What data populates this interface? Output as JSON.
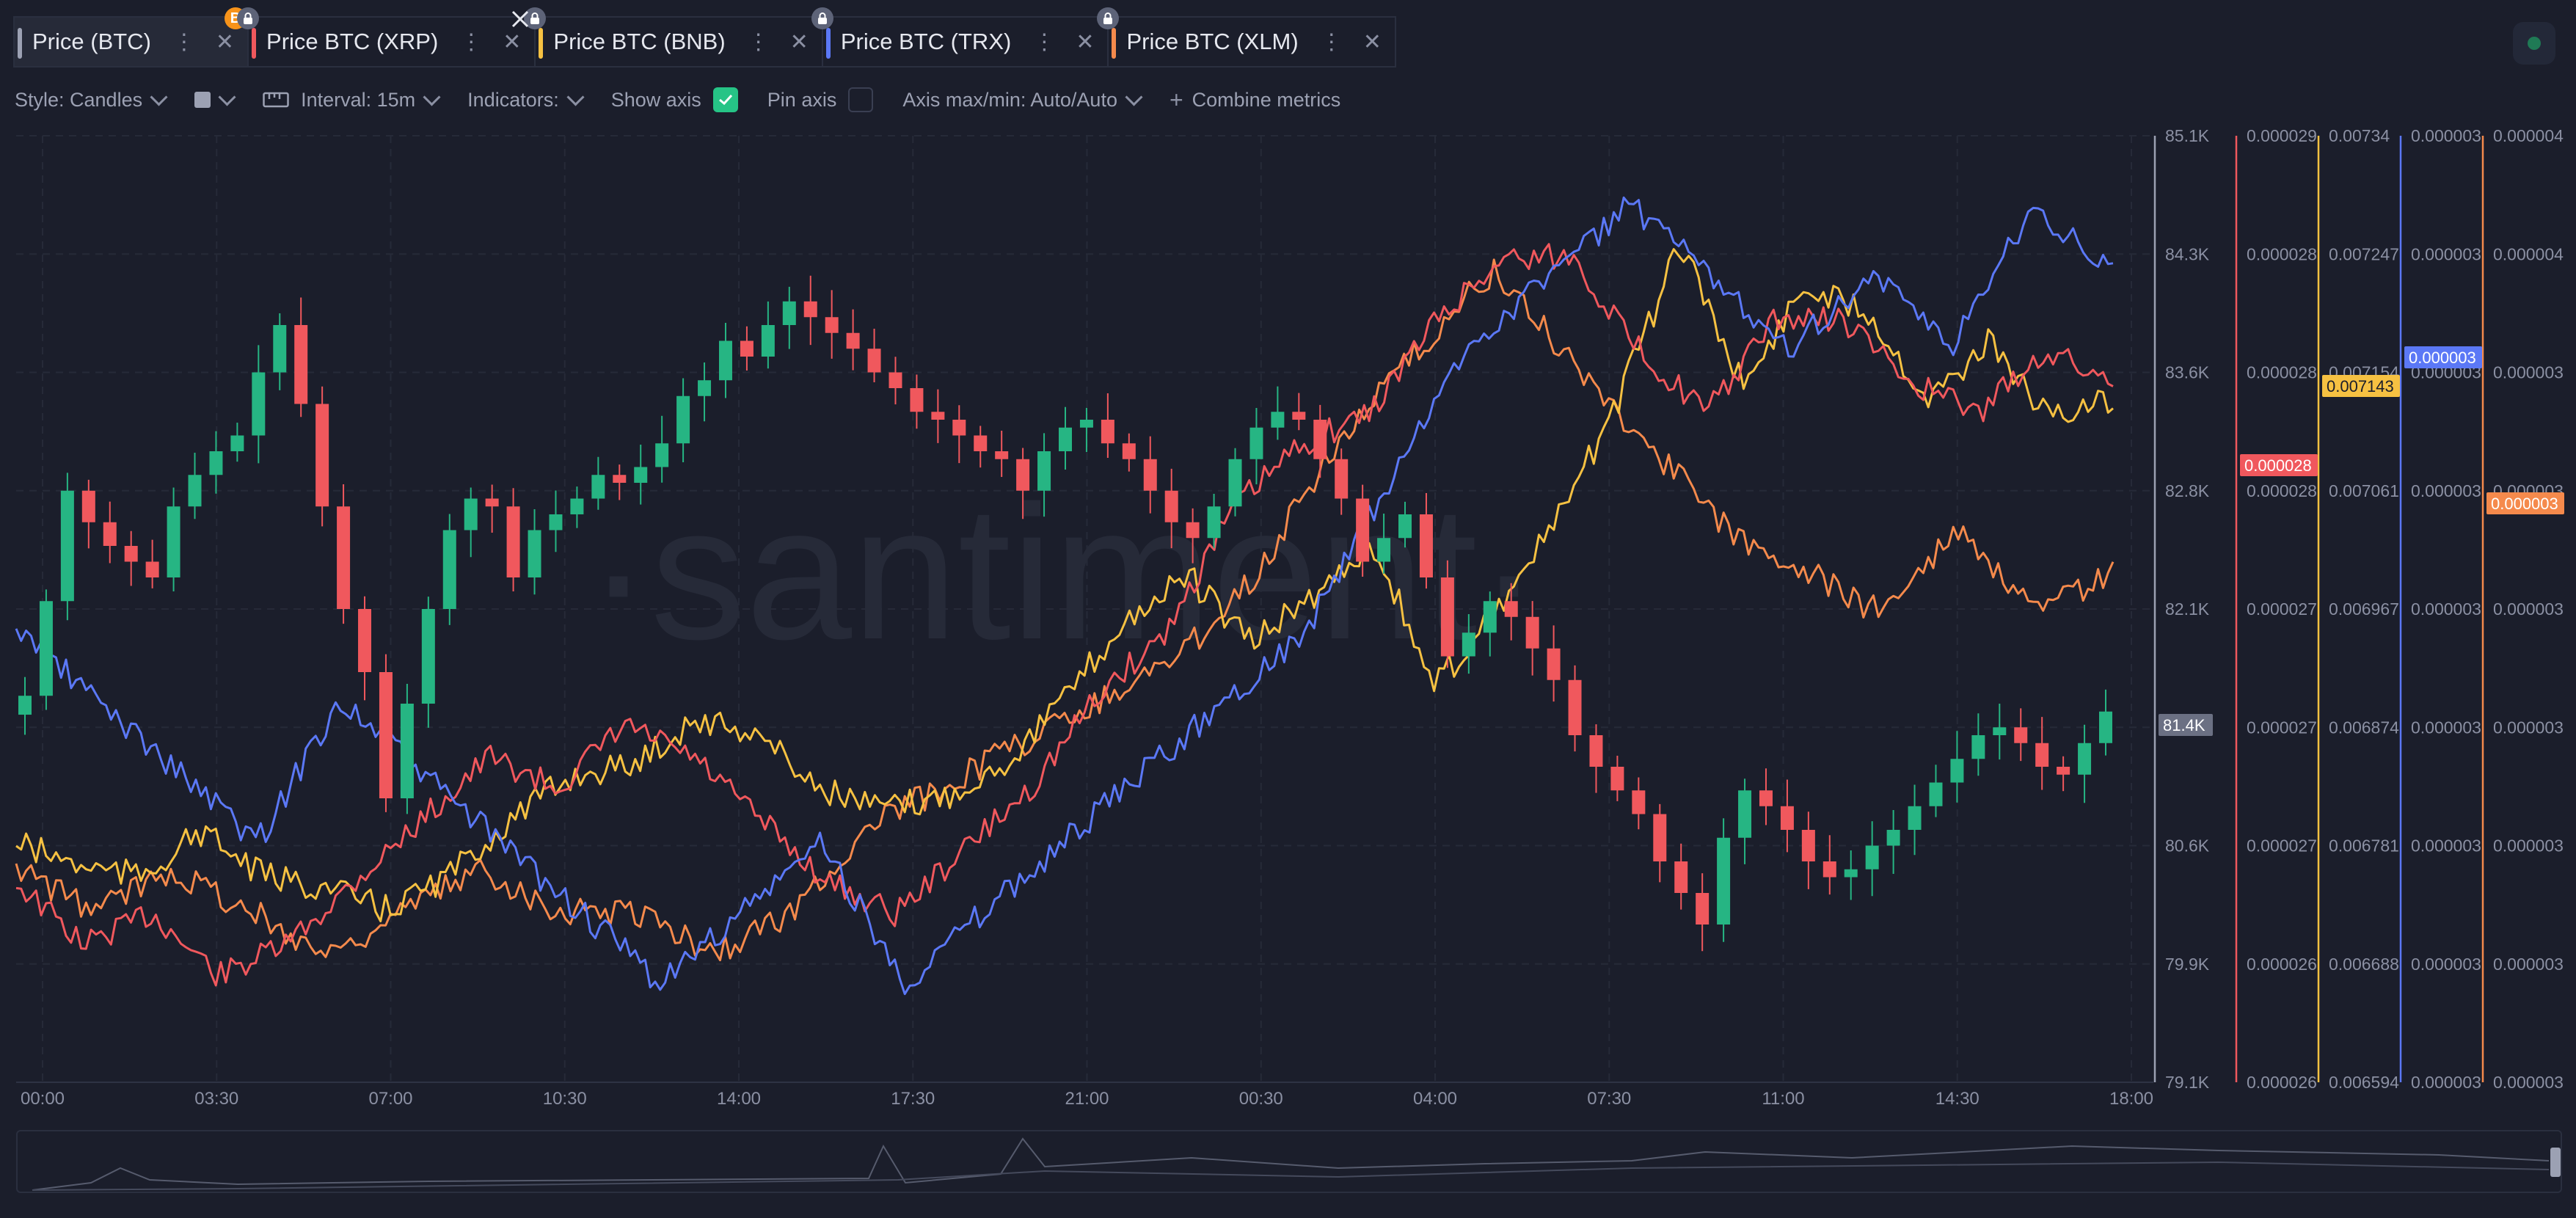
{
  "tabs": [
    {
      "label": "Price (BTC)",
      "color": "#9ca1b3",
      "badge": "B",
      "active": true
    },
    {
      "label": "Price BTC (XRP)",
      "color": "#f0585d",
      "locked": true
    },
    {
      "label": "Price BTC (BNB)",
      "color": "#f6c142",
      "locked": true
    },
    {
      "label": "Price BTC (TRX)",
      "color": "#5b78f6",
      "locked": true
    },
    {
      "label": "Price BTC (XLM)",
      "color": "#f58a4c",
      "locked": true
    }
  ],
  "toolbar": {
    "style_label": "Style: Candles",
    "interval_label": "Interval: 15m",
    "indicators_label": "Indicators:",
    "show_axis_label": "Show axis",
    "show_axis_checked": true,
    "pin_axis_label": "Pin axis",
    "pin_axis_checked": false,
    "axis_label": "Axis max/min: Auto/Auto",
    "combine_label": "Combine metrics"
  },
  "watermark": "·santiment·",
  "chart_data": {
    "type": "line",
    "x_ticks": [
      "00:00",
      "03:30",
      "07:00",
      "10:30",
      "14:00",
      "17:30",
      "21:00",
      "00:30",
      "04:00",
      "07:30",
      "11:00",
      "14:30",
      "18:00"
    ],
    "axes": [
      {
        "name": "Price (BTC)",
        "color": "#9ca1b3",
        "ticks": [
          "85.1K",
          "84.3K",
          "83.6K",
          "82.8K",
          "82.1K",
          "81.4K",
          "80.6K",
          "79.9K",
          "79.1K"
        ],
        "current": "81.4K",
        "ylim": [
          79100,
          85100
        ]
      },
      {
        "name": "Price BTC (XRP)",
        "color": "#f0585d",
        "ticks": [
          "0.000029",
          "0.000028",
          "0.000028",
          "0.000028",
          "0.000027",
          "0.000027",
          "0.000027",
          "0.000026",
          "0.000026"
        ],
        "current": "0.000028"
      },
      {
        "name": "Price BTC (BNB)",
        "color": "#f6c142",
        "ticks": [
          "0.00734",
          "0.007247",
          "0.007154",
          "0.007061",
          "0.006967",
          "0.006874",
          "0.006781",
          "0.006688",
          "0.006594"
        ],
        "current": "0.007143"
      },
      {
        "name": "Price BTC (TRX)",
        "color": "#5b78f6",
        "ticks": [
          "0.000003",
          "0.000003",
          "0.000003",
          "0.000003",
          "0.000003",
          "0.000003",
          "0.000003",
          "0.000003",
          "0.000003"
        ],
        "current": "0.000003"
      },
      {
        "name": "Price BTC (XLM)",
        "color": "#f58a4c",
        "ticks": [
          "0.000004",
          "0.000004",
          "0.000003",
          "0.000003",
          "0.000003",
          "0.000003",
          "0.000003",
          "0.000003",
          "0.000003"
        ],
        "current": "0.000003"
      }
    ],
    "btc_candles_close": [
      81550,
      82150,
      82850,
      82650,
      82500,
      82400,
      82300,
      82750,
      82950,
      83100,
      83200,
      83600,
      83900,
      83400,
      82750,
      82100,
      81700,
      80900,
      81500,
      82100,
      82600,
      82800,
      82750,
      82300,
      82600,
      82700,
      82800,
      82950,
      82900,
      83000,
      83150,
      83450,
      83550,
      83800,
      83700,
      83900,
      84050,
      83950,
      83850,
      83750,
      83600,
      83500,
      83350,
      83300,
      83200,
      83100,
      83050,
      82850,
      83100,
      83250,
      83300,
      83150,
      83050,
      82850,
      82650,
      82550,
      82750,
      83050,
      83250,
      83350,
      83300,
      83050,
      82800,
      82400,
      82550,
      82700,
      82300,
      81800,
      81950,
      82150,
      82050,
      81850,
      81650,
      81300,
      81100,
      80950,
      80800,
      80500,
      80300,
      80100,
      80650,
      80950,
      80850,
      80700,
      80500,
      80400,
      80450,
      80600,
      80700,
      80850,
      81000,
      81150,
      81300,
      81350,
      81250,
      81100,
      81050,
      81250,
      81450
    ],
    "series": [
      {
        "name": "Price BTC (XRP)",
        "color": "#f0585d",
        "values": [
          2.64e-05,
          2.62e-05,
          2.63e-05,
          2.61e-05,
          2.62e-05,
          2.64e-05,
          2.66e-05,
          2.68e-05,
          2.67e-05,
          2.69e-05,
          2.68e-05,
          2.66e-05,
          2.64e-05,
          2.63e-05,
          2.65e-05,
          2.67e-05,
          2.7e-05,
          2.72e-05,
          2.76e-05,
          2.78e-05,
          2.79e-05,
          2.82e-05,
          2.84e-05,
          2.84e-05,
          2.81e-05,
          2.79e-05,
          2.82e-05,
          2.82e-05,
          2.8e-05,
          2.79e-05,
          2.81e-05,
          2.8e-05
        ]
      },
      {
        "name": "Price BTC (BNB)",
        "color": "#f6c142",
        "values": [
          0.00674,
          0.00672,
          0.00671,
          0.00675,
          0.00671,
          0.0067,
          0.00668,
          0.00671,
          0.00676,
          0.0068,
          0.00681,
          0.00685,
          0.00684,
          0.00679,
          0.00677,
          0.00678,
          0.00681,
          0.00687,
          0.00694,
          0.00698,
          0.00692,
          0.00696,
          0.00701,
          0.00688,
          0.00695,
          0.00703,
          0.00714,
          0.00728,
          0.00715,
          0.00724,
          0.00722,
          0.00714,
          0.00719,
          0.00712,
          0.00714
        ]
      },
      {
        "name": "Price BTC (TRX)",
        "color": "#5b78f6",
        "values": [
          3e-06,
          2.9e-06,
          2.8e-06,
          2.7e-06,
          2.9e-06,
          2.8e-06,
          2.7e-06,
          2.6e-06,
          2.5e-06,
          2.6e-06,
          2.7e-06,
          2.5e-06,
          2.6e-06,
          2.7e-06,
          2.8e-06,
          2.9e-06,
          3e-06,
          3.2e-06,
          3.4e-06,
          3.5e-06,
          3.6e-06,
          3.5e-06,
          3.4e-06,
          3.5e-06,
          3.4e-06,
          3.6e-06,
          3.5e-06
        ]
      },
      {
        "name": "Price BTC (XLM)",
        "color": "#f58a4c",
        "values": [
          2.6e-06,
          2.5e-06,
          2.6e-06,
          2.5e-06,
          2.4e-06,
          2.5e-06,
          2.6e-06,
          2.5e-06,
          2.5e-06,
          2.4e-06,
          2.5e-06,
          2.7e-06,
          2.8e-06,
          2.9e-06,
          3e-06,
          3.1e-06,
          3.3e-06,
          3.6e-06,
          3.8e-06,
          4e-06,
          3.8e-06,
          3.6e-06,
          3.4e-06,
          3.3e-06,
          3.2e-06,
          3.4e-06,
          3.2e-06,
          3.3e-06
        ]
      }
    ]
  }
}
